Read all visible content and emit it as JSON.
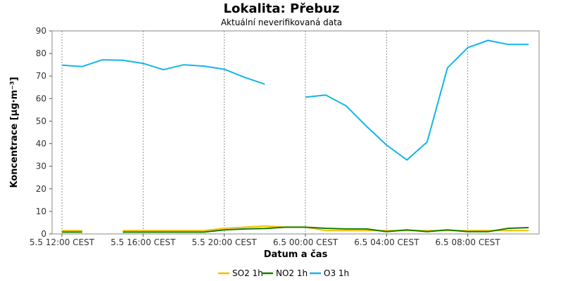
{
  "chart_data": {
    "type": "line",
    "title": "Lokalita: Přebuz",
    "subtitle": "Aktuální neverifikovaná data",
    "xlabel": "Datum a čas",
    "ylabel": "Koncentrace [µg·m⁻³]",
    "ylim": [
      0,
      90
    ],
    "yticks": [
      0,
      10,
      20,
      30,
      40,
      50,
      60,
      70,
      80,
      90
    ],
    "xlim": [
      0,
      24
    ],
    "xticks": [
      {
        "x": 0,
        "label": "5.5 12:00 CEST"
      },
      {
        "x": 4,
        "label": "5.5 16:00 CEST"
      },
      {
        "x": 8,
        "label": "5.5 20:00 CEST"
      },
      {
        "x": 12,
        "label": "6.5 00:00 CEST"
      },
      {
        "x": 16,
        "label": "6.5 04:00 CEST"
      },
      {
        "x": 20,
        "label": "6.5 08:00 CEST"
      }
    ],
    "grid": true,
    "legend_position": "bottom",
    "series": [
      {
        "name": "SO2 1h",
        "color": "#f2c200",
        "x": [
          0,
          1,
          3,
          4,
          5,
          6,
          7,
          8,
          9,
          10,
          11,
          12,
          13,
          14,
          15,
          16,
          17,
          18,
          19,
          20,
          21,
          22,
          23
        ],
        "y": [
          1.5,
          1.5,
          1.5,
          1.5,
          1.5,
          1.5,
          1.5,
          2.5,
          3.0,
          3.5,
          3.0,
          3.0,
          1.5,
          1.5,
          1.5,
          1.5,
          1.5,
          1.5,
          1.5,
          1.5,
          1.5,
          1.5,
          1.5
        ]
      },
      {
        "name": "NO2 1h",
        "color": "#1a7a00",
        "x": [
          0,
          1,
          3,
          4,
          5,
          6,
          7,
          8,
          9,
          10,
          11,
          12,
          13,
          14,
          15,
          16,
          17,
          18,
          19,
          20,
          21,
          22,
          23
        ],
        "y": [
          0.8,
          0.8,
          0.8,
          0.8,
          0.8,
          0.8,
          0.8,
          1.8,
          2.2,
          2.4,
          3.0,
          3.0,
          2.5,
          2.2,
          2.2,
          1.0,
          1.8,
          1.0,
          1.8,
          1.0,
          1.0,
          2.5,
          2.8
        ]
      },
      {
        "name": "O3 1h",
        "color": "#13b5ea",
        "segments": [
          {
            "x": [
              0,
              1,
              2,
              3,
              4,
              5,
              6,
              7,
              8,
              9,
              10
            ],
            "y": [
              74.8,
              74.2,
              77.2,
              77.0,
              75.6,
              72.8,
              75.0,
              74.4,
              73.0,
              69.4,
              66.4
            ]
          },
          {
            "x": [
              12,
              13,
              14,
              15,
              16,
              17,
              18,
              19,
              20,
              21,
              22,
              23
            ],
            "y": [
              60.6,
              61.6,
              56.8,
              47.8,
              39.4,
              32.8,
              40.8,
              73.6,
              82.6,
              85.8,
              84.0,
              84.0
            ]
          }
        ]
      }
    ]
  }
}
